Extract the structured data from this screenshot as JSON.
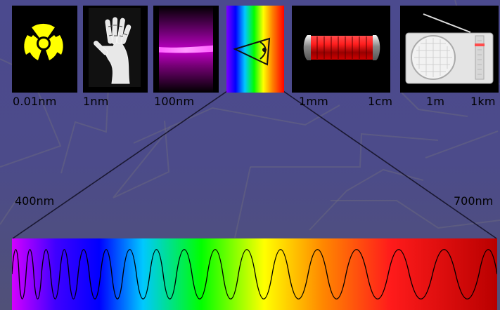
{
  "scale_labels": [
    "0.01nm",
    "1nm",
    "100nm",
    "1mm",
    "1cm",
    "1m",
    "1km"
  ],
  "visible_range": {
    "start_label": "400nm",
    "end_label": "700nm"
  },
  "colors": {
    "background": "#4b4a8e",
    "label": "#000000",
    "radiation_yellow": "#ffff00",
    "uv_magenta": "#ff00ff",
    "microwave_red": "#d10000"
  },
  "icons": [
    "radiation-symbol-icon",
    "x-ray-hand-icon",
    "ultraviolet-glow-icon",
    "eye-icon",
    "microwave-tube-icon",
    "radio-icon"
  ]
}
